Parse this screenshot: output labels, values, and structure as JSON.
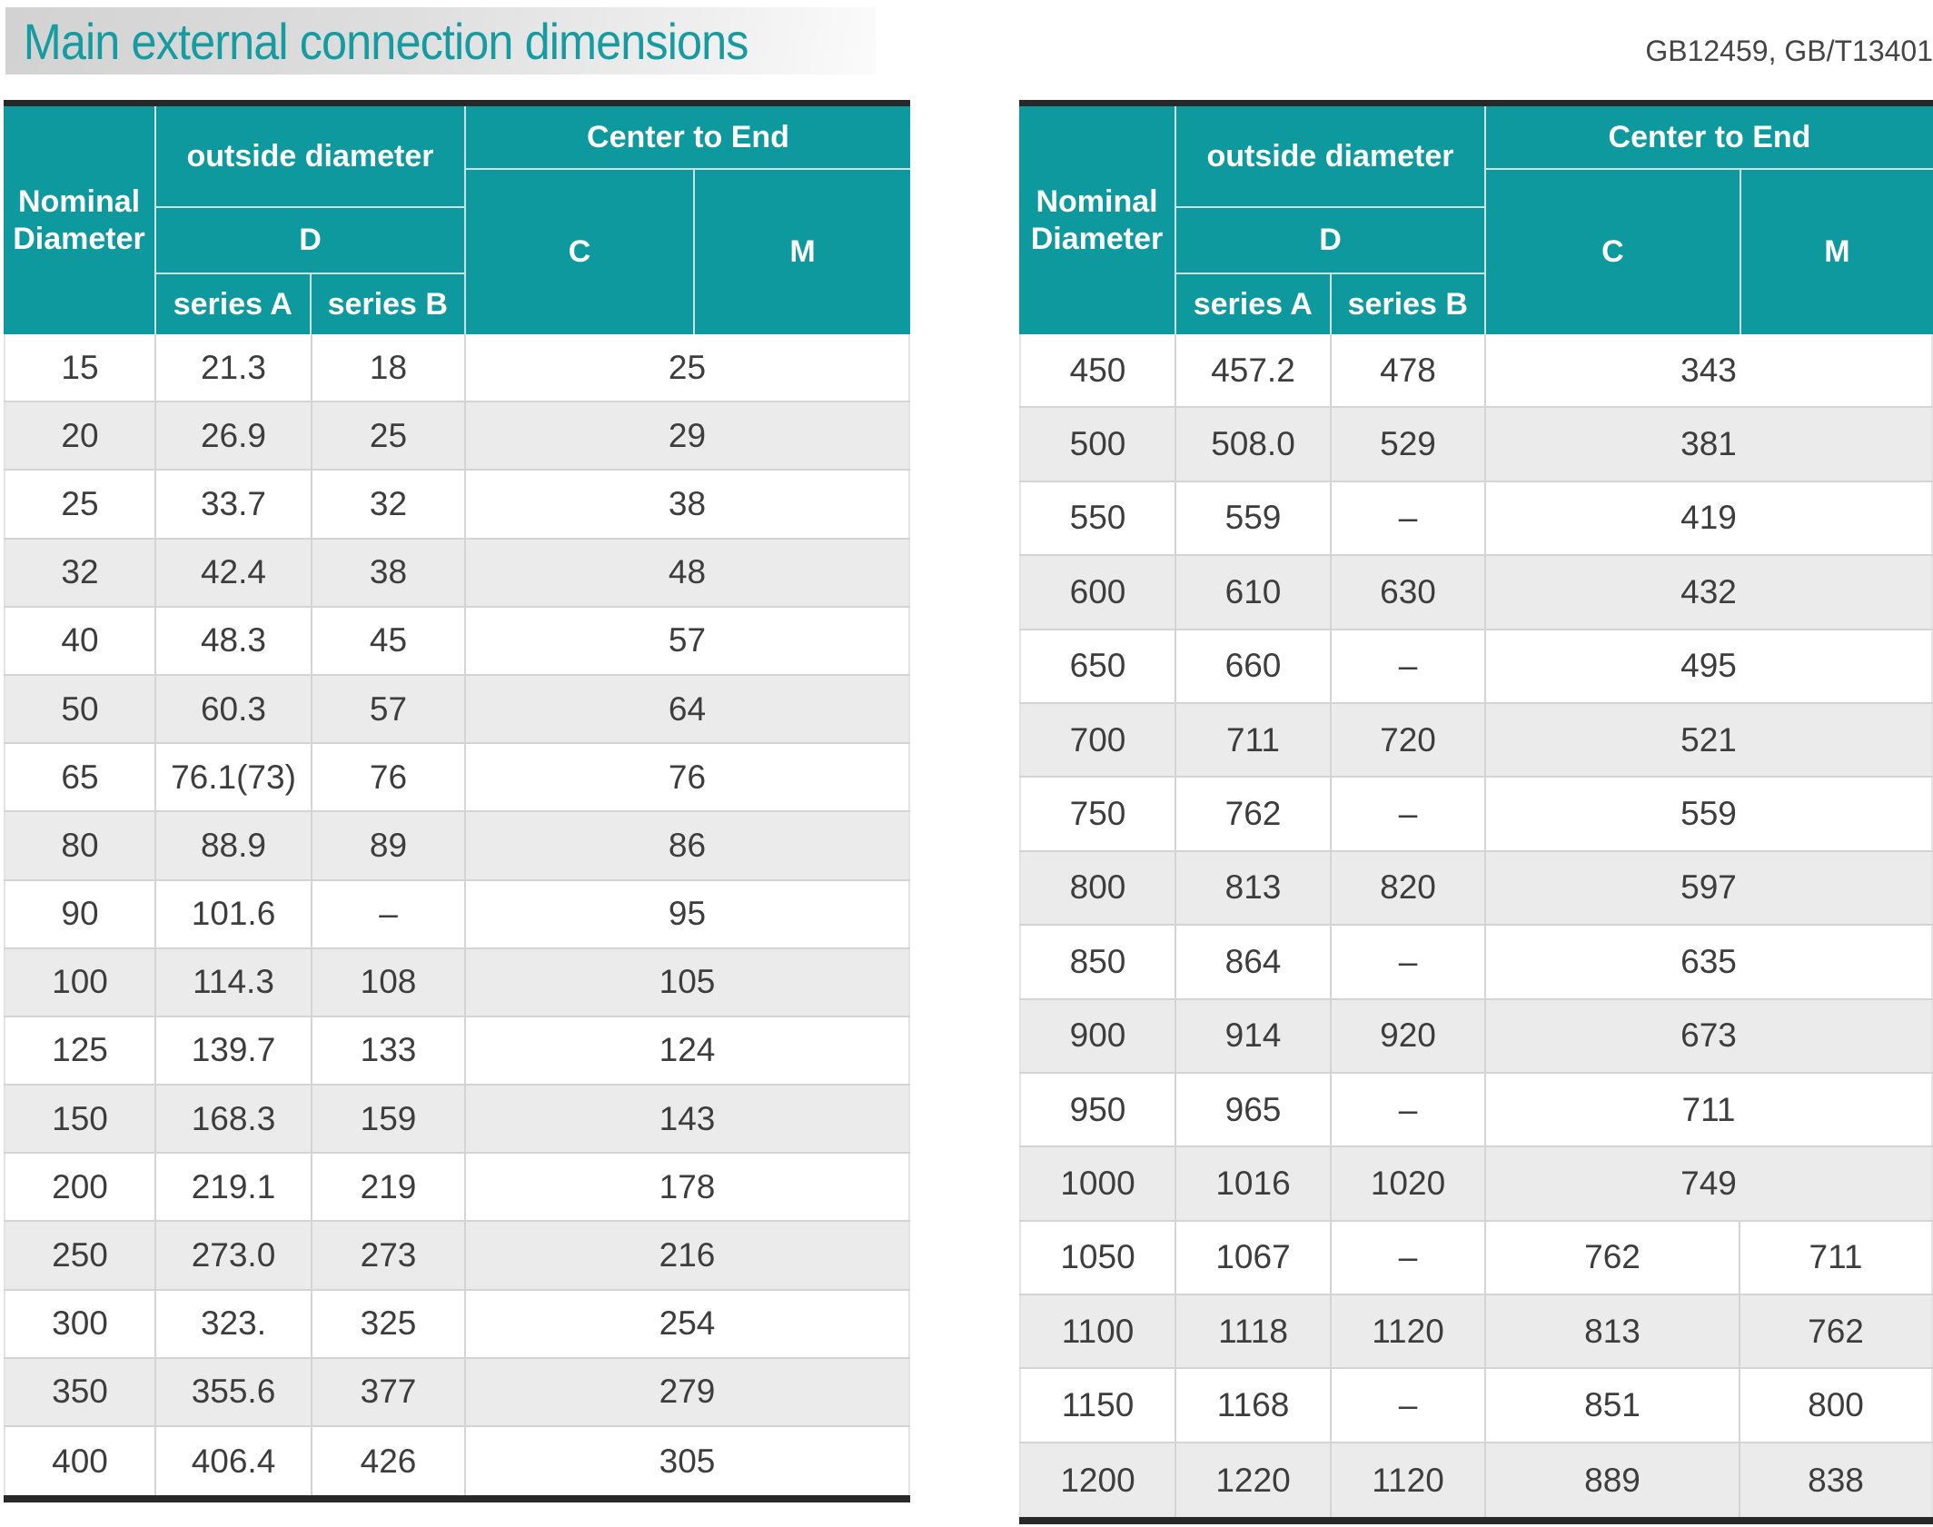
{
  "page": {
    "title": "Main external connection dimensions",
    "standards": "GB12459, GB/T13401"
  },
  "header_labels": {
    "nominal_diameter": "Nominal Diameter",
    "outside_diameter": "outside diameter",
    "d": "D",
    "series_a": "series A",
    "series_b": "series B",
    "center_to_end": "Center to End",
    "c": "C",
    "m": "M"
  },
  "colors": {
    "teal": "#0e999e",
    "title_teal": "#169ba0",
    "alt": "#ebebeb",
    "bar": "#282828",
    "btxt": "#3d3d3d"
  },
  "left_table": {
    "rows": [
      {
        "dn": "15",
        "a": "21.3",
        "b": "18",
        "cm": "25"
      },
      {
        "dn": "20",
        "a": "26.9",
        "b": "25",
        "cm": "29"
      },
      {
        "dn": "25",
        "a": "33.7",
        "b": "32",
        "cm": "38"
      },
      {
        "dn": "32",
        "a": "42.4",
        "b": "38",
        "cm": "48"
      },
      {
        "dn": "40",
        "a": "48.3",
        "b": "45",
        "cm": "57"
      },
      {
        "dn": "50",
        "a": "60.3",
        "b": "57",
        "cm": "64"
      },
      {
        "dn": "65",
        "a": "76.1(73)",
        "b": "76",
        "cm": "76"
      },
      {
        "dn": "80",
        "a": "88.9",
        "b": "89",
        "cm": "86"
      },
      {
        "dn": "90",
        "a": "101.6",
        "b": "–",
        "cm": "95"
      },
      {
        "dn": "100",
        "a": "114.3",
        "b": "108",
        "cm": "105"
      },
      {
        "dn": "125",
        "a": "139.7",
        "b": "133",
        "cm": "124"
      },
      {
        "dn": "150",
        "a": "168.3",
        "b": "159",
        "cm": "143"
      },
      {
        "dn": "200",
        "a": "219.1",
        "b": "219",
        "cm": "178"
      },
      {
        "dn": "250",
        "a": "273.0",
        "b": "273",
        "cm": "216"
      },
      {
        "dn": "300",
        "a": "323.",
        "b": "325",
        "cm": "254"
      },
      {
        "dn": "350",
        "a": "355.6",
        "b": "377",
        "cm": "279"
      },
      {
        "dn": "400",
        "a": "406.4",
        "b": "426",
        "cm": "305"
      }
    ]
  },
  "right_table": {
    "rows": [
      {
        "dn": "450",
        "a": "457.2",
        "b": "478",
        "cm": "343"
      },
      {
        "dn": "500",
        "a": "508.0",
        "b": "529",
        "cm": "381"
      },
      {
        "dn": "550",
        "a": "559",
        "b": "–",
        "cm": "419"
      },
      {
        "dn": "600",
        "a": "610",
        "b": "630",
        "cm": "432"
      },
      {
        "dn": "650",
        "a": "660",
        "b": "–",
        "cm": "495"
      },
      {
        "dn": "700",
        "a": "711",
        "b": "720",
        "cm": "521"
      },
      {
        "dn": "750",
        "a": "762",
        "b": "–",
        "cm": "559"
      },
      {
        "dn": "800",
        "a": "813",
        "b": "820",
        "cm": "597"
      },
      {
        "dn": "850",
        "a": "864",
        "b": "–",
        "cm": "635"
      },
      {
        "dn": "900",
        "a": "914",
        "b": "920",
        "cm": "673"
      },
      {
        "dn": "950",
        "a": "965",
        "b": "–",
        "cm": "711"
      },
      {
        "dn": "1000",
        "a": "1016",
        "b": "1020",
        "cm": "749"
      },
      {
        "dn": "1050",
        "a": "1067",
        "b": "–",
        "c": "762",
        "m": "711"
      },
      {
        "dn": "1100",
        "a": "1118",
        "b": "1120",
        "c": "813",
        "m": "762"
      },
      {
        "dn": "1150",
        "a": "1168",
        "b": "–",
        "c": "851",
        "m": "800"
      },
      {
        "dn": "1200",
        "a": "1220",
        "b": "1120",
        "c": "889",
        "m": "838"
      }
    ]
  }
}
